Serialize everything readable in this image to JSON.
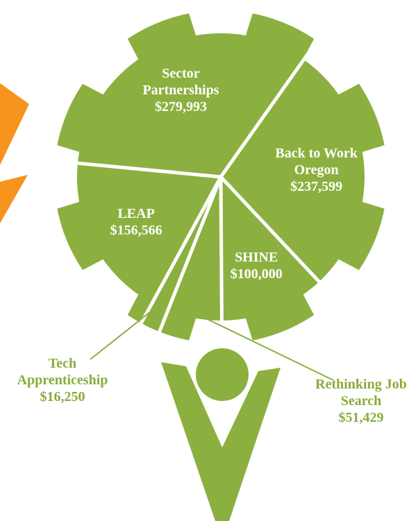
{
  "chart_data": {
    "type": "pie",
    "categories": [
      "Sector Partnerships",
      "Back to Work Oregon",
      "SHINE",
      "Rethinking Job Search",
      "Tech Apprenticeship",
      "LEAP"
    ],
    "values": [
      279993,
      237599,
      100000,
      51429,
      16250,
      156566
    ],
    "value_labels": [
      "$279,993",
      "$237,599",
      "$100,000",
      "$51,429",
      "$16,250",
      "$156,566"
    ],
    "color": "#8cb03f"
  }
}
